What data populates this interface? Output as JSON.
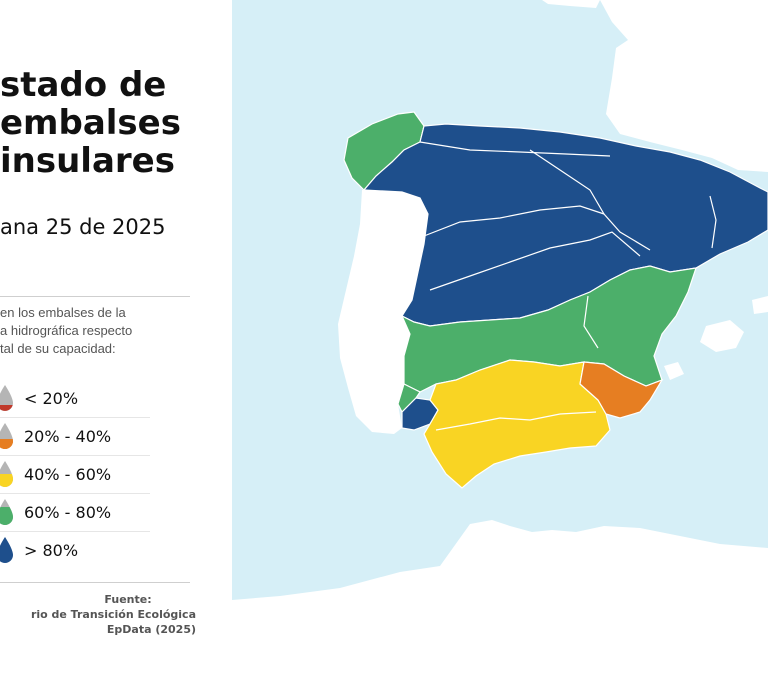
{
  "title": {
    "line1": "stado de",
    "line2": "embalses",
    "line3": "insulares"
  },
  "date": "ana 25 de 2025",
  "description": {
    "line1": "en los embalses de la",
    "line2": "a hidrográfica respecto",
    "line3": "tal de su capacidad:"
  },
  "legend": {
    "items": [
      {
        "label": "< 20%",
        "color": "#c0392b"
      },
      {
        "label": "20% - 40%",
        "color": "#e67e22"
      },
      {
        "label": "40% - 60%",
        "color": "#f9d423"
      },
      {
        "label": "60% - 80%",
        "color": "#4caf6a"
      },
      {
        "label": "> 80%",
        "color": "#1e4f8c"
      }
    ]
  },
  "source": {
    "label": "Fuente:",
    "line1": "rio de Transición Ecológica",
    "line2": "EpData (2025)"
  },
  "colors": {
    "sea": "#d6eff7",
    "land": "#ffffff",
    "green": "#4caf6a",
    "blue": "#1e4f8c",
    "yellow": "#f9d423",
    "orange": "#e67e22"
  }
}
